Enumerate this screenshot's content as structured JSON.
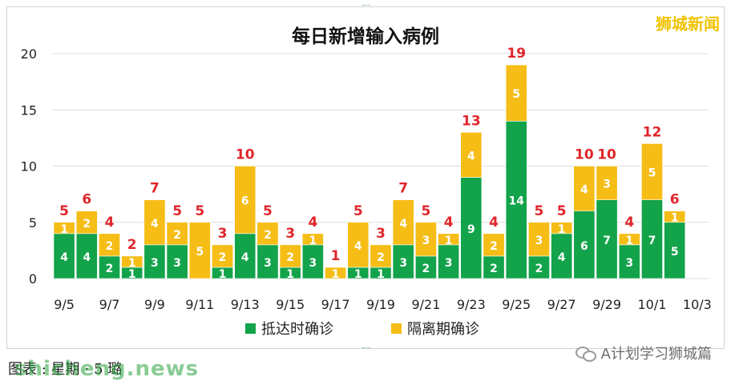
{
  "chart_data": {
    "type": "bar",
    "stacked": true,
    "title": "每日新增输入病例",
    "categories": [
      "9/5",
      "9/6",
      "9/7",
      "9/8",
      "9/9",
      "9/10",
      "9/11",
      "9/12",
      "9/13",
      "9/14",
      "9/15",
      "9/16",
      "9/17",
      "9/18",
      "9/19",
      "9/20",
      "9/21",
      "9/22",
      "9/23",
      "9/24",
      "9/25",
      "9/26",
      "9/27",
      "9/28",
      "9/29",
      "9/30",
      "10/1",
      "10/2",
      "10/3"
    ],
    "tick_labels": [
      "9/5",
      "9/7",
      "9/9",
      "9/11",
      "9/13",
      "9/15",
      "9/17",
      "9/19",
      "9/21",
      "9/23",
      "9/25",
      "9/27",
      "9/29",
      "10/1",
      "10/3"
    ],
    "series": [
      {
        "name": "抵达时确诊",
        "color": "#13a34a",
        "values": [
          4,
          4,
          2,
          1,
          3,
          3,
          0,
          1,
          4,
          3,
          1,
          3,
          0,
          1,
          1,
          3,
          2,
          3,
          9,
          2,
          14,
          2,
          4,
          6,
          7,
          3,
          7,
          5,
          null
        ]
      },
      {
        "name": "隔离期确诊",
        "color": "#f5bd16",
        "values": [
          1,
          2,
          2,
          1,
          4,
          2,
          5,
          2,
          6,
          2,
          2,
          1,
          1,
          4,
          2,
          4,
          3,
          1,
          4,
          2,
          5,
          3,
          1,
          4,
          3,
          1,
          5,
          1,
          null
        ]
      }
    ],
    "totals": [
      5,
      6,
      4,
      2,
      7,
      5,
      5,
      3,
      10,
      5,
      3,
      4,
      1,
      5,
      3,
      7,
      5,
      4,
      13,
      4,
      19,
      5,
      5,
      10,
      10,
      4,
      12,
      6,
      null
    ],
    "ylim": [
      0,
      20
    ],
    "yticks": [
      0,
      5,
      10,
      15,
      20
    ],
    "grid": true,
    "legend_position": "bottom",
    "total_label_color": "#e0262b"
  },
  "watermark_top": "狮城新闻",
  "caption": "图表 : 星期 ⋅ 5 璐",
  "caption_overlay": "shicheng.news",
  "wechat_label": "A计划学习狮城篇"
}
